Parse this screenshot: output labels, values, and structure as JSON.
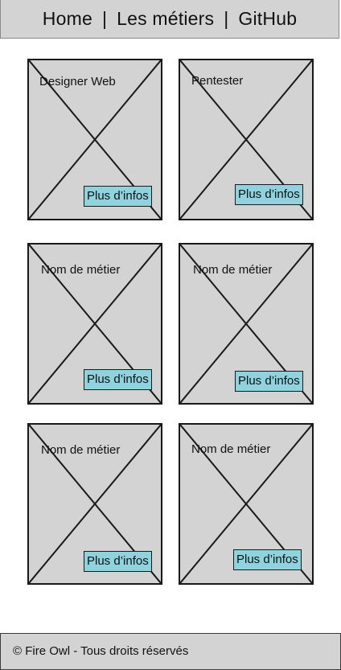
{
  "nav": {
    "home": "Home",
    "metiers": "Les métiers",
    "github": "GitHub",
    "separator": "|"
  },
  "cards": [
    {
      "title": "Designer Web",
      "button": "Plus d’infos"
    },
    {
      "title": "Pentester",
      "button": "Plus d’infos"
    },
    {
      "title": "Nom de métier",
      "button": "Plus d’infos"
    },
    {
      "title": "Nom de métier",
      "button": "Plus d’infos"
    },
    {
      "title": "Nom de métier",
      "button": "Plus d’infos"
    },
    {
      "title": "Nom de métier",
      "button": "Plus d’infos"
    }
  ],
  "footer": {
    "text": "© Fire Owl - Tous droits réservés"
  },
  "colors": {
    "background": "#d3d3d3",
    "button": "#8fd3de",
    "border": "#1a1a1a"
  }
}
